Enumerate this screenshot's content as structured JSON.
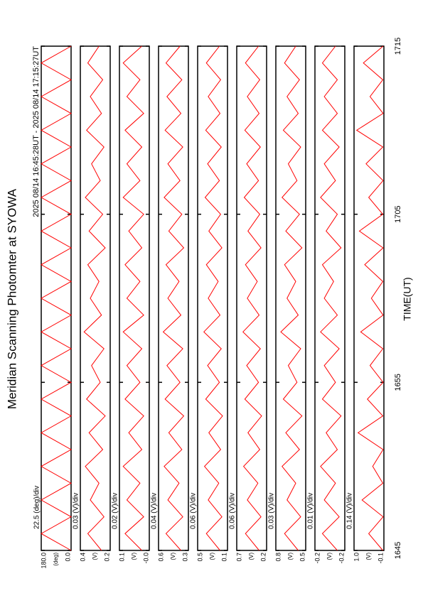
{
  "chart_data": {
    "type": "line",
    "title": "Meridian Scanning Photomter at SYOWA",
    "subtitle": "2025 08/14 16:45:28UT - 2025 08/14 17:15:27UT",
    "xlabel": "TIME(UT)",
    "color": "#ff0000",
    "x": [
      1005,
      1006,
      1007,
      1008,
      1009,
      1010,
      1011,
      1012,
      1013,
      1014,
      1015,
      1016,
      1017,
      1018,
      1019,
      1020,
      1021,
      1022,
      1023,
      1024,
      1025,
      1026,
      1027,
      1028,
      1029,
      1030,
      1031,
      1032,
      1033,
      1034,
      1035
    ],
    "xlim": [
      1005,
      1035
    ],
    "xticks": [
      {
        "value": 1005,
        "label": "1645"
      },
      {
        "value": 1015,
        "label": "1655"
      },
      {
        "value": 1025,
        "label": "1705"
      },
      {
        "value": 1035,
        "label": "1715"
      }
    ],
    "panels": [
      {
        "scale": "22.5 (deg)/div",
        "unit": "(deg)",
        "ylim": [
          0,
          180
        ],
        "yticks": [
          {
            "value": 180,
            "label": "180.0"
          },
          {
            "value": 0,
            "label": "0.0"
          }
        ],
        "values": [
          0,
          180,
          0,
          180,
          0,
          180,
          0,
          180,
          0,
          180,
          0,
          180,
          0,
          180,
          0,
          180,
          0,
          180,
          0,
          180,
          0,
          180,
          0,
          180,
          0,
          180,
          0,
          180,
          0,
          180,
          0
        ]
      },
      {
        "scale": "0.03 (V)/div",
        "unit": "(V)",
        "ylim": [
          0.2,
          0.44
        ],
        "yticks": [
          {
            "value": 0.44,
            "label": "0.4"
          },
          {
            "value": 0.2,
            "label": "0.2"
          }
        ],
        "values": [
          0.27,
          0.38,
          0.25,
          0.36,
          0.29,
          0.4,
          0.26,
          0.37,
          0.24,
          0.39,
          0.28,
          0.35,
          0.25,
          0.41,
          0.27,
          0.36,
          0.29,
          0.38,
          0.24,
          0.37,
          0.26,
          0.4,
          0.28,
          0.35,
          0.25,
          0.39,
          0.27,
          0.36,
          0.26,
          0.38,
          0.29
        ]
      },
      {
        "scale": "0.02 (V)/div",
        "unit": "(V)",
        "ylim": [
          -0.02,
          0.14
        ],
        "yticks": [
          {
            "value": 0.14,
            "label": "0.1"
          },
          {
            "value": -0.02,
            "label": "-0.0"
          }
        ],
        "values": [
          0.02,
          0.11,
          0.01,
          0.1,
          0.03,
          0.12,
          0.02,
          0.09,
          0.01,
          0.11,
          0.03,
          0.1,
          0.02,
          0.12,
          0.01,
          0.1,
          0.03,
          0.11,
          0.02,
          0.09,
          0.01,
          0.12,
          0.03,
          0.1,
          0.02,
          0.11,
          0.01,
          0.1,
          0.03,
          0.12,
          0.02
        ]
      },
      {
        "scale": "0.04 (V)/div",
        "unit": "(V)",
        "ylim": [
          0.28,
          0.6
        ],
        "yticks": [
          {
            "value": 0.6,
            "label": "0.6"
          },
          {
            "value": 0.28,
            "label": "0.3"
          }
        ],
        "values": [
          0.36,
          0.52,
          0.34,
          0.5,
          0.38,
          0.54,
          0.35,
          0.49,
          0.33,
          0.53,
          0.37,
          0.51,
          0.34,
          0.55,
          0.36,
          0.5,
          0.38,
          0.52,
          0.33,
          0.49,
          0.35,
          0.54,
          0.37,
          0.5,
          0.34,
          0.53,
          0.36,
          0.51,
          0.35,
          0.52,
          0.37
        ]
      },
      {
        "scale": "0.06 (V)/div",
        "unit": "(V)",
        "ylim": [
          0.06,
          0.54
        ],
        "yticks": [
          {
            "value": 0.54,
            "label": "0.5"
          },
          {
            "value": 0.06,
            "label": "0.1"
          }
        ],
        "values": [
          0.18,
          0.4,
          0.15,
          0.37,
          0.2,
          0.43,
          0.17,
          0.36,
          0.14,
          0.41,
          0.19,
          0.38,
          0.16,
          0.44,
          0.18,
          0.37,
          0.21,
          0.4,
          0.15,
          0.36,
          0.17,
          0.42,
          0.19,
          0.38,
          0.16,
          0.41,
          0.18,
          0.37,
          0.17,
          0.4,
          0.19
        ]
      },
      {
        "scale": "0.06 (V)/div",
        "unit": "(V)",
        "ylim": [
          0.22,
          0.7
        ],
        "yticks": [
          {
            "value": 0.7,
            "label": "0.7"
          },
          {
            "value": 0.22,
            "label": "0.2"
          }
        ],
        "values": [
          0.34,
          0.56,
          0.31,
          0.53,
          0.36,
          0.59,
          0.33,
          0.52,
          0.3,
          0.57,
          0.35,
          0.54,
          0.32,
          0.6,
          0.34,
          0.53,
          0.37,
          0.56,
          0.31,
          0.52,
          0.33,
          0.58,
          0.35,
          0.54,
          0.32,
          0.57,
          0.34,
          0.53,
          0.33,
          0.56,
          0.35
        ]
      },
      {
        "scale": "0.03 (V)/div",
        "unit": "(V)",
        "ylim": [
          0.51,
          0.75
        ],
        "yticks": [
          {
            "value": 0.75,
            "label": "0.8"
          },
          {
            "value": 0.51,
            "label": "0.5"
          }
        ],
        "values": [
          0.57,
          0.68,
          0.55,
          0.66,
          0.59,
          0.7,
          0.56,
          0.67,
          0.54,
          0.69,
          0.58,
          0.65,
          0.55,
          0.71,
          0.57,
          0.66,
          0.59,
          0.68,
          0.54,
          0.67,
          0.56,
          0.7,
          0.58,
          0.65,
          0.55,
          0.69,
          0.57,
          0.66,
          0.56,
          0.68,
          0.59
        ]
      },
      {
        "scale": "0.01 (V)/div",
        "unit": "(V)",
        "ylim": [
          -0.24,
          -0.16
        ],
        "yticks": [
          {
            "value": -0.16,
            "label": "-0.2"
          },
          {
            "value": -0.24,
            "label": "-0.2"
          }
        ],
        "values": [
          -0.22,
          -0.18,
          -0.225,
          -0.185,
          -0.215,
          -0.175,
          -0.22,
          -0.19,
          -0.23,
          -0.18,
          -0.215,
          -0.185,
          -0.225,
          -0.175,
          -0.22,
          -0.185,
          -0.21,
          -0.18,
          -0.23,
          -0.19,
          -0.22,
          -0.175,
          -0.215,
          -0.185,
          -0.225,
          -0.18,
          -0.22,
          -0.185,
          -0.22,
          -0.18,
          -0.215
        ]
      },
      {
        "scale": "0.14 (V)/div",
        "unit": "(V)",
        "ylim": [
          -0.12,
          1.0
        ],
        "yticks": [
          {
            "value": 1.0,
            "label": "1.0"
          },
          {
            "value": -0.12,
            "label": "-0.1"
          }
        ],
        "values": [
          -0.08,
          0.45,
          -0.09,
          0.7,
          -0.08,
          0.3,
          -0.09,
          0.85,
          -0.08,
          0.5,
          -0.09,
          0.4,
          -0.08,
          0.75,
          -0.09,
          0.35,
          -0.08,
          0.6,
          -0.09,
          0.8,
          -0.08,
          0.45,
          -0.09,
          0.55,
          -0.08,
          0.9,
          -0.09,
          0.4,
          -0.08,
          0.65,
          -0.09
        ]
      }
    ]
  }
}
